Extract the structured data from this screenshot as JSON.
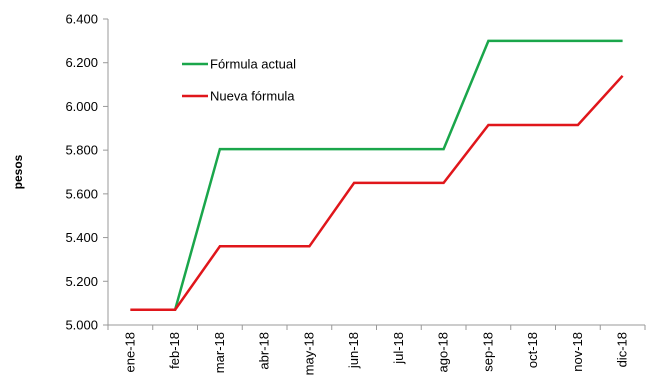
{
  "chart_data": {
    "type": "line",
    "ylabel": "pesos",
    "xlabel": "",
    "title": "",
    "categories": [
      "ene-18",
      "feb-18",
      "mar-18",
      "abr-18",
      "may-18",
      "jun-18",
      "jul-18",
      "ago-18",
      "sep-18",
      "oct-18",
      "nov-18",
      "dic-18"
    ],
    "ylim": [
      5000,
      6400
    ],
    "yticks": [
      {
        "value": 5000,
        "label": "5.000"
      },
      {
        "value": 5200,
        "label": "5.200"
      },
      {
        "value": 5400,
        "label": "5.400"
      },
      {
        "value": 5600,
        "label": "5.600"
      },
      {
        "value": 5800,
        "label": "5.800"
      },
      {
        "value": 6000,
        "label": "6.000"
      },
      {
        "value": 6200,
        "label": "6.200"
      },
      {
        "value": 6400,
        "label": "6.400"
      }
    ],
    "grid": false,
    "legend_position": "top-left",
    "series": [
      {
        "name": "Fórmula actual",
        "color": "#1aa64b",
        "values": [
          5070,
          5070,
          5805,
          5805,
          5805,
          5805,
          5805,
          5805,
          6300,
          6300,
          6300,
          6300
        ]
      },
      {
        "name": "Nueva fórmula",
        "color": "#e0161b",
        "values": [
          5070,
          5070,
          5360,
          5360,
          5360,
          5650,
          5650,
          5650,
          5915,
          5915,
          5915,
          6140
        ]
      }
    ]
  }
}
